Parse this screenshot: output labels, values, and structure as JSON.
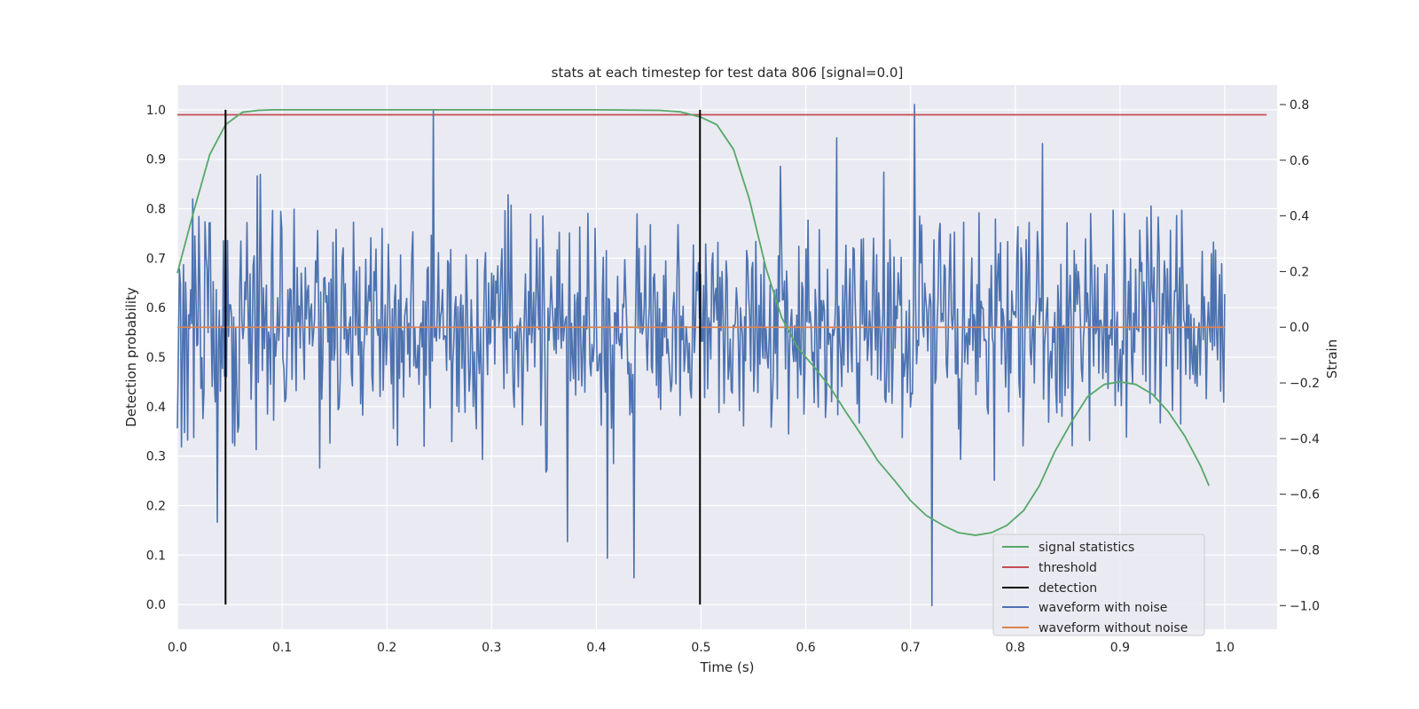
{
  "chart_data": {
    "type": "line",
    "title": "stats at each timestep for test data 806 [signal=0.0]",
    "xlabel": "Time (s)",
    "ylabel_left": "Detection probability",
    "ylabel_right": "Strain",
    "xlim": [
      0.0,
      1.05
    ],
    "ylim_left": [
      -0.05,
      1.05
    ],
    "ylim_right": [
      -1.085,
      0.87
    ],
    "x_ticks": [
      "0.0",
      "0.1",
      "0.2",
      "0.3",
      "0.4",
      "0.5",
      "0.6",
      "0.7",
      "0.8",
      "0.9",
      "1.0"
    ],
    "y_ticks_left": [
      "0.0",
      "0.1",
      "0.2",
      "0.3",
      "0.4",
      "0.5",
      "0.6",
      "0.7",
      "0.8",
      "0.9",
      "1.0"
    ],
    "y_ticks_right": [
      "−1.0",
      "−0.8",
      "−0.6",
      "−0.4",
      "−0.2",
      "0.0",
      "0.2",
      "0.4",
      "0.6",
      "0.8"
    ],
    "grid": true,
    "legend_position": "lower-right",
    "series": [
      {
        "name": "signal statistics",
        "axis": "left",
        "color": "#55a868",
        "x": [
          0.0,
          0.015,
          0.031,
          0.046,
          0.062,
          0.077,
          0.092,
          0.108,
          0.2,
          0.3,
          0.4,
          0.46,
          0.48,
          0.5,
          0.515,
          0.531,
          0.546,
          0.562,
          0.577,
          0.592,
          0.608,
          0.623,
          0.638,
          0.654,
          0.669,
          0.685,
          0.7,
          0.715,
          0.731,
          0.746,
          0.762,
          0.777,
          0.792,
          0.808,
          0.823,
          0.838,
          0.854,
          0.869,
          0.885,
          0.9,
          0.915,
          0.931,
          0.946,
          0.962,
          0.977,
          0.985
        ],
        "values": [
          0.67,
          0.79,
          0.91,
          0.97,
          0.995,
          0.999,
          1.0,
          1.0,
          1.0,
          1.0,
          1.0,
          0.999,
          0.996,
          0.985,
          0.97,
          0.92,
          0.82,
          0.68,
          0.58,
          0.52,
          0.48,
          0.44,
          0.39,
          0.34,
          0.29,
          0.25,
          0.21,
          0.18,
          0.16,
          0.145,
          0.14,
          0.145,
          0.16,
          0.19,
          0.24,
          0.31,
          0.37,
          0.42,
          0.445,
          0.45,
          0.445,
          0.425,
          0.39,
          0.34,
          0.28,
          0.24
        ]
      },
      {
        "name": "threshold",
        "axis": "left",
        "color": "#c44e52",
        "x": [
          0.0,
          1.04
        ],
        "values": [
          0.99,
          0.99
        ]
      },
      {
        "name": "detection",
        "axis": "left",
        "color": "#000000",
        "x_positions": [
          0.046,
          0.499
        ],
        "range": [
          0.0,
          1.0
        ]
      },
      {
        "name": "waveform with noise",
        "axis": "right",
        "color": "#4c72b0",
        "x_range": [
          0.0,
          1.0
        ],
        "n_points": 1024,
        "amplitude_range": [
          -1.0,
          0.8
        ],
        "highlights": [
          {
            "x": 0.244,
            "y": 0.78
          },
          {
            "x": 0.704,
            "y": 0.8
          },
          {
            "x": 0.72,
            "y": -1.0
          },
          {
            "x": 0.436,
            "y": -0.9
          },
          {
            "x": 0.038,
            "y": -0.7
          },
          {
            "x": 0.411,
            "y": -0.83
          },
          {
            "x": 0.372,
            "y": -0.77
          },
          {
            "x": 0.63,
            "y": 0.68
          },
          {
            "x": 0.826,
            "y": 0.66
          }
        ]
      },
      {
        "name": "waveform without noise",
        "axis": "right",
        "color": "#dd8452",
        "x": [
          0.0,
          1.0
        ],
        "values": [
          0.0,
          0.0
        ]
      }
    ]
  }
}
